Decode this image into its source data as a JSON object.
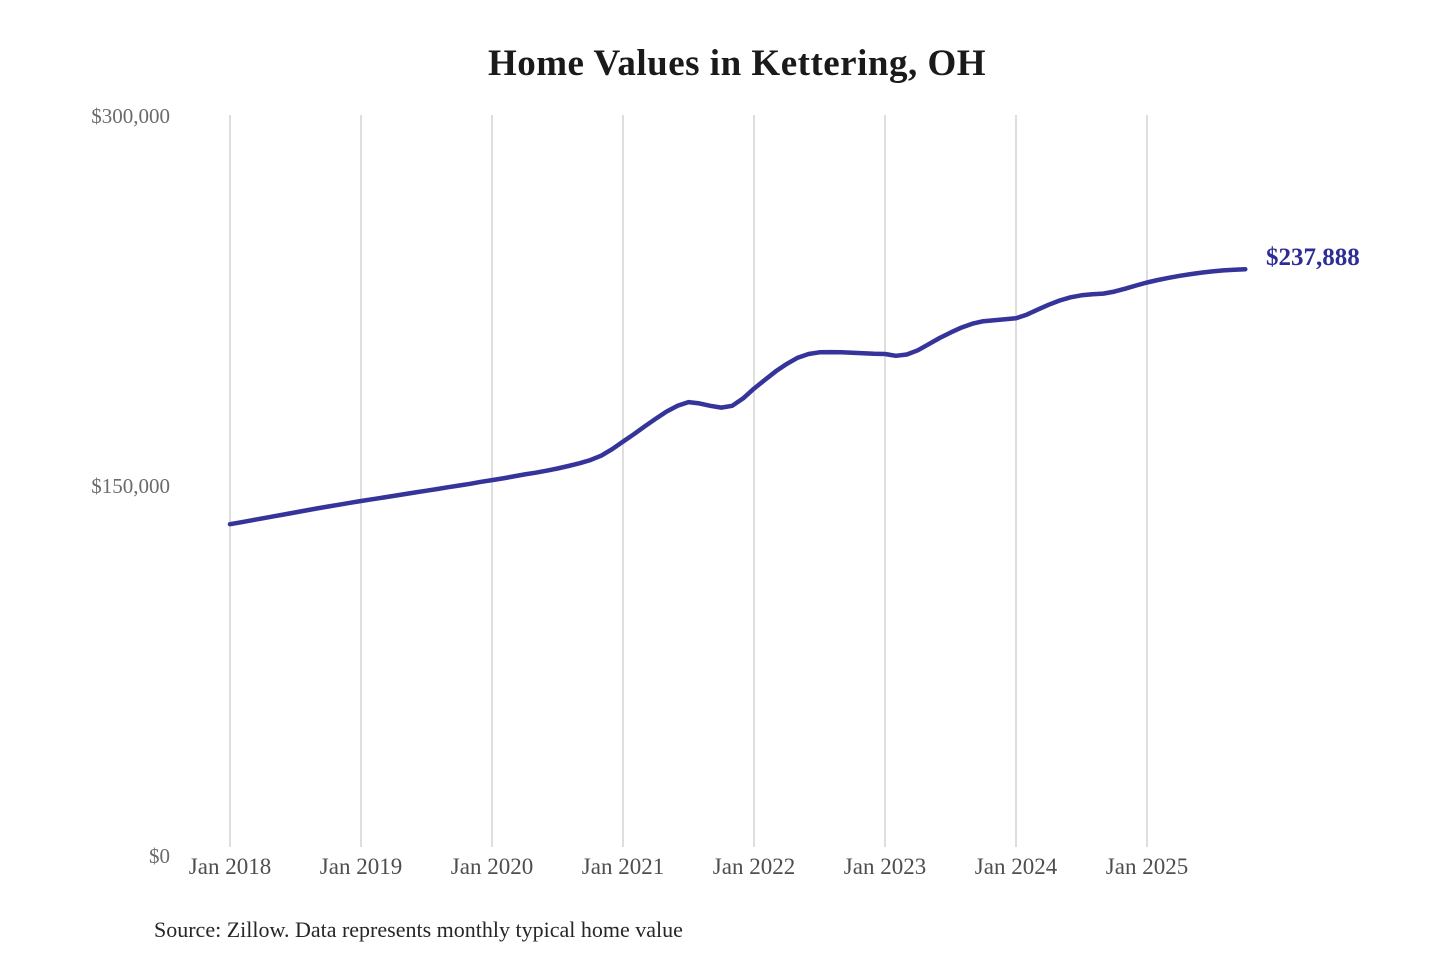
{
  "title": "Home Values in Kettering, OH",
  "source_note": "Source: Zillow. Data represents monthly typical home value",
  "end_label": "$237,888",
  "colors": {
    "line": "#34349b",
    "grid": "#cccccc",
    "end_label": "#2d2d97",
    "title": "#1a1a1a"
  },
  "chart_data": {
    "type": "line",
    "title": "Home Values in Kettering, OH",
    "series_name": "Monthly typical home value",
    "xlabel": "",
    "ylabel": "",
    "ylim": [
      0,
      300000
    ],
    "grid": "vertical-only",
    "final_value": 237888,
    "final_value_label": "$237,888",
    "y_ticks": [
      "$300,000",
      "$150,000",
      "$0"
    ],
    "y_tick_values": [
      300000,
      150000,
      0
    ],
    "x_ticks": [
      "Jan 2018",
      "Jan 2019",
      "Jan 2020",
      "Jan 2021",
      "Jan 2022",
      "Jan 2023",
      "Jan 2024",
      "Jan 2025"
    ],
    "months": [
      "Jan 2018",
      "Feb 2018",
      "Mar 2018",
      "Apr 2018",
      "May 2018",
      "Jun 2018",
      "Jul 2018",
      "Aug 2018",
      "Sep 2018",
      "Oct 2018",
      "Nov 2018",
      "Dec 2018",
      "Jan 2019",
      "Feb 2019",
      "Mar 2019",
      "Apr 2019",
      "May 2019",
      "Jun 2019",
      "Jul 2019",
      "Aug 2019",
      "Sep 2019",
      "Oct 2019",
      "Nov 2019",
      "Dec 2019",
      "Jan 2020",
      "Feb 2020",
      "Mar 2020",
      "Apr 2020",
      "May 2020",
      "Jun 2020",
      "Jul 2020",
      "Aug 2020",
      "Sep 2020",
      "Oct 2020",
      "Nov 2020",
      "Dec 2020",
      "Jan 2021",
      "Feb 2021",
      "Mar 2021",
      "Apr 2021",
      "May 2021",
      "Jun 2021",
      "Jul 2021",
      "Aug 2021",
      "Sep 2021",
      "Oct 2021",
      "Nov 2021",
      "Dec 2021",
      "Jan 2022",
      "Feb 2022",
      "Mar 2022",
      "Apr 2022",
      "May 2022",
      "Jun 2022",
      "Jul 2022",
      "Aug 2022",
      "Sep 2022",
      "Oct 2022",
      "Nov 2022",
      "Dec 2022",
      "Jan 2023",
      "Feb 2023",
      "Mar 2023",
      "Apr 2023",
      "May 2023",
      "Jun 2023",
      "Jul 2023",
      "Aug 2023",
      "Sep 2023",
      "Oct 2023",
      "Nov 2023",
      "Dec 2023",
      "Jan 2024",
      "Feb 2024",
      "Mar 2024",
      "Apr 2024",
      "May 2024",
      "Jun 2024",
      "Jul 2024",
      "Aug 2024",
      "Sep 2024",
      "Oct 2024",
      "Nov 2024",
      "Dec 2024",
      "Jan 2025",
      "Feb 2025",
      "Mar 2025",
      "Apr 2025",
      "May 2025",
      "Jun 2025",
      "Jul 2025",
      "Aug 2025",
      "Sep 2025",
      "Oct 2025"
    ],
    "values": [
      134500,
      135300,
      136100,
      136900,
      137700,
      138500,
      139300,
      140100,
      140900,
      141700,
      142400,
      143200,
      143900,
      144600,
      145300,
      146000,
      146700,
      147400,
      148100,
      148800,
      149500,
      150200,
      150900,
      151700,
      152400,
      153100,
      153900,
      154700,
      155400,
      156200,
      157100,
      158100,
      159200,
      160500,
      162300,
      164900,
      168000,
      171000,
      174200,
      177300,
      180200,
      182500,
      184000,
      183500,
      182500,
      181800,
      182500,
      185500,
      189500,
      193000,
      196500,
      199500,
      202000,
      203500,
      204200,
      204300,
      204200,
      204000,
      203800,
      203600,
      203500,
      202800,
      203300,
      205000,
      207500,
      210000,
      212200,
      214200,
      215800,
      216800,
      217200,
      217600,
      218000,
      219500,
      221500,
      223500,
      225200,
      226500,
      227300,
      227700,
      228000,
      228800,
      230000,
      231300,
      232500,
      233500,
      234400,
      235200,
      235900,
      236500,
      237000,
      237400,
      237700,
      237888
    ]
  }
}
